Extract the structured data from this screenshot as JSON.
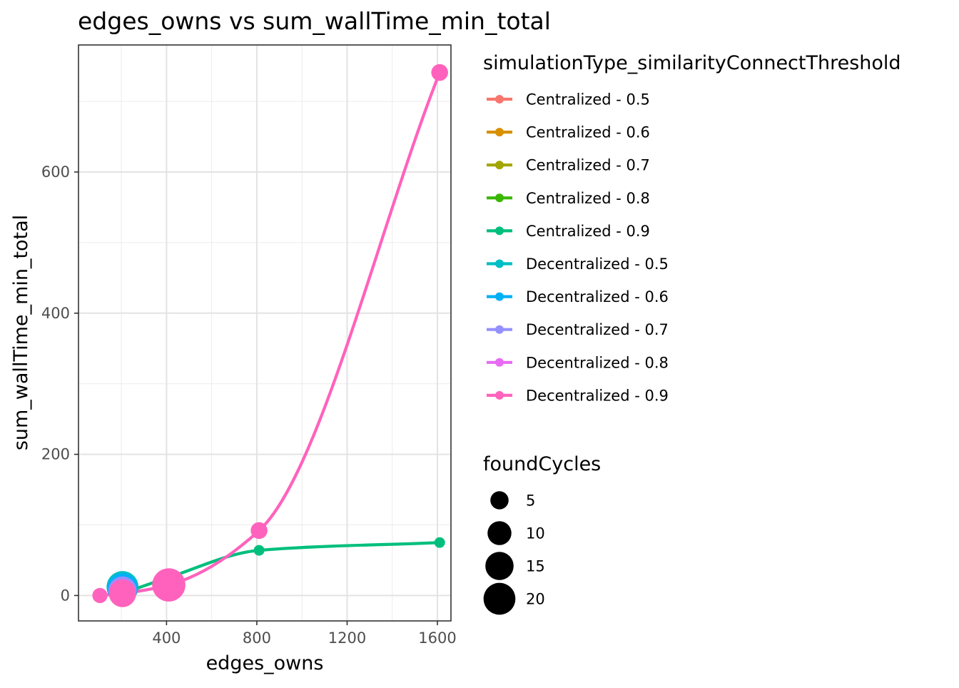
{
  "chart_data": {
    "type": "scatter",
    "title": "edges_owns  vs  sum_wallTime_min_total",
    "xlabel": "edges_owns",
    "ylabel": "sum_wallTime_min_total",
    "xlim": [
      10,
      1660
    ],
    "ylim": [
      -36,
      780
    ],
    "x_ticks": [
      400,
      800,
      1200,
      1600
    ],
    "y_ticks": [
      0,
      200,
      400,
      600
    ],
    "grid": true,
    "legend_color_title": "simulationType_similarityConnectThreshold",
    "legend_size_title": "foundCycles",
    "legend_position": "right",
    "size_legend": [
      {
        "label": "5",
        "value": 5
      },
      {
        "label": "10",
        "value": 10
      },
      {
        "label": "15",
        "value": 15
      },
      {
        "label": "20",
        "value": 20
      }
    ],
    "series": [
      {
        "name": "Centralized - 0.5",
        "color": "#F8766D",
        "points": []
      },
      {
        "name": "Centralized - 0.6",
        "color": "#D89000",
        "points": []
      },
      {
        "name": "Centralized - 0.7",
        "color": "#A3A500",
        "points": []
      },
      {
        "name": "Centralized - 0.8",
        "color": "#39B600",
        "points": []
      },
      {
        "name": "Centralized - 0.9",
        "color": "#00BF7D",
        "smooth": true,
        "points": [
          {
            "x": 205,
            "y": 3,
            "size": 1
          },
          {
            "x": 405,
            "y": 25,
            "size": 1
          },
          {
            "x": 810,
            "y": 64,
            "size": 1
          },
          {
            "x": 1610,
            "y": 75,
            "size": 1
          }
        ]
      },
      {
        "name": "Decentralized - 0.5",
        "color": "#00BFC4",
        "points": [
          {
            "x": 205,
            "y": 12,
            "size": 20
          }
        ]
      },
      {
        "name": "Decentralized - 0.6",
        "color": "#00B0F6",
        "points": [
          {
            "x": 205,
            "y": 10,
            "size": 18
          }
        ]
      },
      {
        "name": "Decentralized - 0.7",
        "color": "#9590FF",
        "points": [
          {
            "x": 205,
            "y": 7,
            "size": 15
          }
        ]
      },
      {
        "name": "Decentralized - 0.8",
        "color": "#E76BF3",
        "points": [
          {
            "x": 205,
            "y": 5,
            "size": 12
          }
        ]
      },
      {
        "name": "Decentralized - 0.9",
        "color": "#FF62BC",
        "smooth": true,
        "points": [
          {
            "x": 105,
            "y": 0,
            "size": 3
          },
          {
            "x": 205,
            "y": 3,
            "size": 14
          },
          {
            "x": 410,
            "y": 15,
            "size": 22
          },
          {
            "x": 810,
            "y": 92,
            "size": 4
          },
          {
            "x": 1610,
            "y": 741,
            "size": 4
          }
        ]
      }
    ]
  }
}
